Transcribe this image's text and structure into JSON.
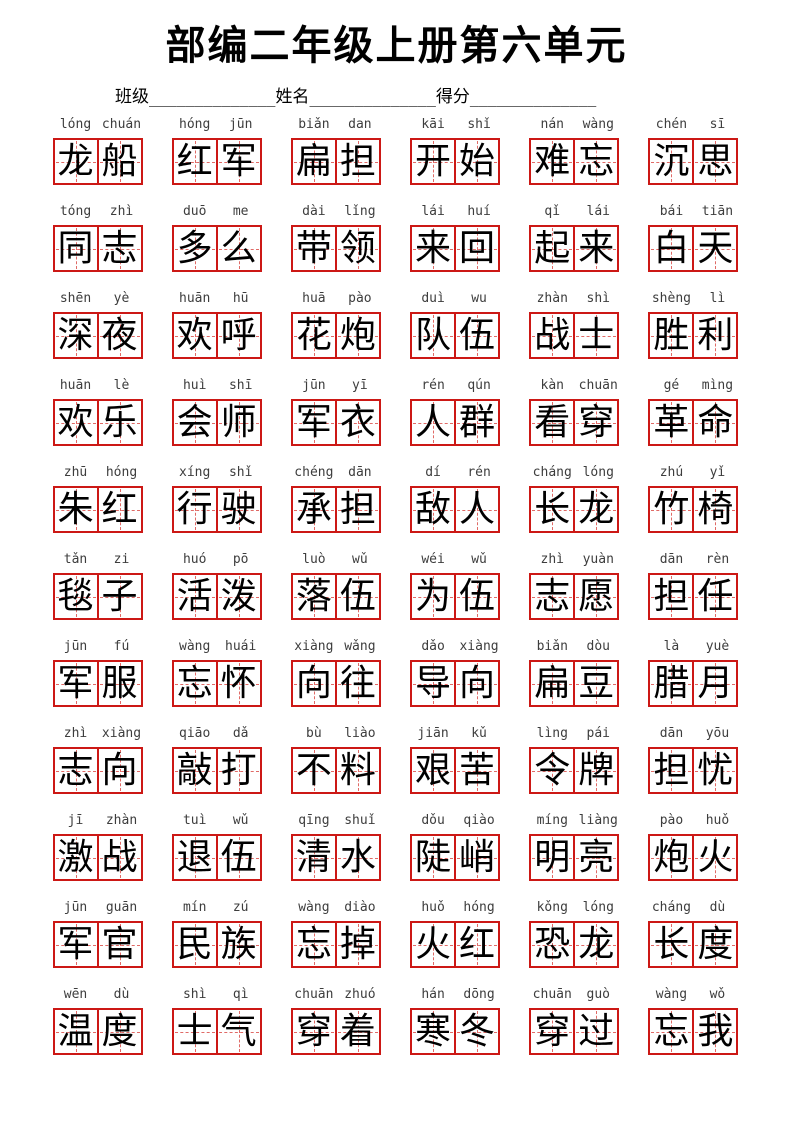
{
  "header": {
    "title": "部编二年级上册第六单元",
    "fields": [
      {
        "label": "班级",
        "blank": "______________"
      },
      {
        "label": "姓名",
        "blank": "______________"
      },
      {
        "label": "得分",
        "blank": "______________"
      }
    ]
  },
  "colors": {
    "box_border": "#cc1815",
    "guide_line": "#e06a66",
    "character_ink": "#000000",
    "pinyin_ink": "#3d3d3d"
  },
  "rows": [
    [
      {
        "py": [
          "lóng",
          "chuán"
        ],
        "zi": [
          "龙",
          "船"
        ]
      },
      {
        "py": [
          "hóng",
          "jūn"
        ],
        "zi": [
          "红",
          "军"
        ]
      },
      {
        "py": [
          "biǎn",
          "dan"
        ],
        "zi": [
          "扁",
          "担"
        ]
      },
      {
        "py": [
          "kāi",
          "shǐ"
        ],
        "zi": [
          "开",
          "始"
        ]
      },
      {
        "py": [
          "nán",
          "wàng"
        ],
        "zi": [
          "难",
          "忘"
        ]
      },
      {
        "py": [
          "chén",
          "sī"
        ],
        "zi": [
          "沉",
          "思"
        ]
      }
    ],
    [
      {
        "py": [
          "tóng",
          "zhì"
        ],
        "zi": [
          "同",
          "志"
        ]
      },
      {
        "py": [
          "duō",
          "me"
        ],
        "zi": [
          "多",
          "么"
        ]
      },
      {
        "py": [
          "dài",
          "lǐng"
        ],
        "zi": [
          "带",
          "领"
        ]
      },
      {
        "py": [
          "lái",
          "huí"
        ],
        "zi": [
          "来",
          "回"
        ]
      },
      {
        "py": [
          "qǐ",
          "lái"
        ],
        "zi": [
          "起",
          "来"
        ]
      },
      {
        "py": [
          "bái",
          "tiān"
        ],
        "zi": [
          "白",
          "天"
        ]
      }
    ],
    [
      {
        "py": [
          "shēn",
          "yè"
        ],
        "zi": [
          "深",
          "夜"
        ]
      },
      {
        "py": [
          "huān",
          "hū"
        ],
        "zi": [
          "欢",
          "呼"
        ]
      },
      {
        "py": [
          "huā",
          "pào"
        ],
        "zi": [
          "花",
          "炮"
        ]
      },
      {
        "py": [
          "duì",
          "wu"
        ],
        "zi": [
          "队",
          "伍"
        ]
      },
      {
        "py": [
          "zhàn",
          "shì"
        ],
        "zi": [
          "战",
          "士"
        ]
      },
      {
        "py": [
          "shèng",
          "lì"
        ],
        "zi": [
          "胜",
          "利"
        ]
      }
    ],
    [
      {
        "py": [
          "huān",
          "lè"
        ],
        "zi": [
          "欢",
          "乐"
        ]
      },
      {
        "py": [
          "huì",
          "shī"
        ],
        "zi": [
          "会",
          "师"
        ]
      },
      {
        "py": [
          "jūn",
          "yī"
        ],
        "zi": [
          "军",
          "衣"
        ]
      },
      {
        "py": [
          "rén",
          "qún"
        ],
        "zi": [
          "人",
          "群"
        ]
      },
      {
        "py": [
          "kàn",
          "chuān"
        ],
        "zi": [
          "看",
          "穿"
        ]
      },
      {
        "py": [
          "gé",
          "mìng"
        ],
        "zi": [
          "革",
          "命"
        ]
      }
    ],
    [
      {
        "py": [
          "zhū",
          "hóng"
        ],
        "zi": [
          "朱",
          "红"
        ]
      },
      {
        "py": [
          "xíng",
          "shǐ"
        ],
        "zi": [
          "行",
          "驶"
        ]
      },
      {
        "py": [
          "chéng",
          "dān"
        ],
        "zi": [
          "承",
          "担"
        ]
      },
      {
        "py": [
          "dí",
          "rén"
        ],
        "zi": [
          "敌",
          "人"
        ]
      },
      {
        "py": [
          "cháng",
          "lóng"
        ],
        "zi": [
          "长",
          "龙"
        ]
      },
      {
        "py": [
          "zhú",
          "yǐ"
        ],
        "zi": [
          "竹",
          "椅"
        ]
      }
    ],
    [
      {
        "py": [
          "tǎn",
          "zi"
        ],
        "zi": [
          "毯",
          "子"
        ]
      },
      {
        "py": [
          "huó",
          "pō"
        ],
        "zi": [
          "活",
          "泼"
        ]
      },
      {
        "py": [
          "luò",
          "wǔ"
        ],
        "zi": [
          "落",
          "伍"
        ]
      },
      {
        "py": [
          "wéi",
          "wǔ"
        ],
        "zi": [
          "为",
          "伍"
        ]
      },
      {
        "py": [
          "zhì",
          "yuàn"
        ],
        "zi": [
          "志",
          "愿"
        ]
      },
      {
        "py": [
          "dān",
          "rèn"
        ],
        "zi": [
          "担",
          "任"
        ]
      }
    ],
    [
      {
        "py": [
          "jūn",
          "fú"
        ],
        "zi": [
          "军",
          "服"
        ]
      },
      {
        "py": [
          "wàng",
          "huái"
        ],
        "zi": [
          "忘",
          "怀"
        ]
      },
      {
        "py": [
          "xiàng",
          "wǎng"
        ],
        "zi": [
          "向",
          "往"
        ]
      },
      {
        "py": [
          "dǎo",
          "xiàng"
        ],
        "zi": [
          "导",
          "向"
        ]
      },
      {
        "py": [
          "biǎn",
          "dòu"
        ],
        "zi": [
          "扁",
          "豆"
        ]
      },
      {
        "py": [
          "là",
          "yuè"
        ],
        "zi": [
          "腊",
          "月"
        ]
      }
    ],
    [
      {
        "py": [
          "zhì",
          "xiàng"
        ],
        "zi": [
          "志",
          "向"
        ]
      },
      {
        "py": [
          "qiāo",
          "dǎ"
        ],
        "zi": [
          "敲",
          "打"
        ]
      },
      {
        "py": [
          "bù",
          "liào"
        ],
        "zi": [
          "不",
          "料"
        ]
      },
      {
        "py": [
          "jiān",
          "kǔ"
        ],
        "zi": [
          "艰",
          "苦"
        ]
      },
      {
        "py": [
          "lìng",
          "pái"
        ],
        "zi": [
          "令",
          "牌"
        ]
      },
      {
        "py": [
          "dān",
          "yōu"
        ],
        "zi": [
          "担",
          "忧"
        ]
      }
    ],
    [
      {
        "py": [
          "jī",
          "zhàn"
        ],
        "zi": [
          "激",
          "战"
        ]
      },
      {
        "py": [
          "tuì",
          "wǔ"
        ],
        "zi": [
          "退",
          "伍"
        ]
      },
      {
        "py": [
          "qīng",
          "shuǐ"
        ],
        "zi": [
          "清",
          "水"
        ]
      },
      {
        "py": [
          "dǒu",
          "qiào"
        ],
        "zi": [
          "陡",
          "峭"
        ]
      },
      {
        "py": [
          "míng",
          "liàng"
        ],
        "zi": [
          "明",
          "亮"
        ]
      },
      {
        "py": [
          "pào",
          "huǒ"
        ],
        "zi": [
          "炮",
          "火"
        ]
      }
    ],
    [
      {
        "py": [
          "jūn",
          "guān"
        ],
        "zi": [
          "军",
          "官"
        ]
      },
      {
        "py": [
          "mín",
          "zú"
        ],
        "zi": [
          "民",
          "族"
        ]
      },
      {
        "py": [
          "wàng",
          "diào"
        ],
        "zi": [
          "忘",
          "掉"
        ]
      },
      {
        "py": [
          "huǒ",
          "hóng"
        ],
        "zi": [
          "火",
          "红"
        ]
      },
      {
        "py": [
          "kǒng",
          "lóng"
        ],
        "zi": [
          "恐",
          "龙"
        ]
      },
      {
        "py": [
          "cháng",
          "dù"
        ],
        "zi": [
          "长",
          "度"
        ]
      }
    ],
    [
      {
        "py": [
          "wēn",
          "dù"
        ],
        "zi": [
          "温",
          "度"
        ]
      },
      {
        "py": [
          "shì",
          "qì"
        ],
        "zi": [
          "士",
          "气"
        ]
      },
      {
        "py": [
          "chuān",
          "zhuó"
        ],
        "zi": [
          "穿",
          "着"
        ]
      },
      {
        "py": [
          "hán",
          "dōng"
        ],
        "zi": [
          "寒",
          "冬"
        ]
      },
      {
        "py": [
          "chuān",
          "guò"
        ],
        "zi": [
          "穿",
          "过"
        ]
      },
      {
        "py": [
          "wàng",
          "wǒ"
        ],
        "zi": [
          "忘",
          "我"
        ]
      }
    ]
  ]
}
